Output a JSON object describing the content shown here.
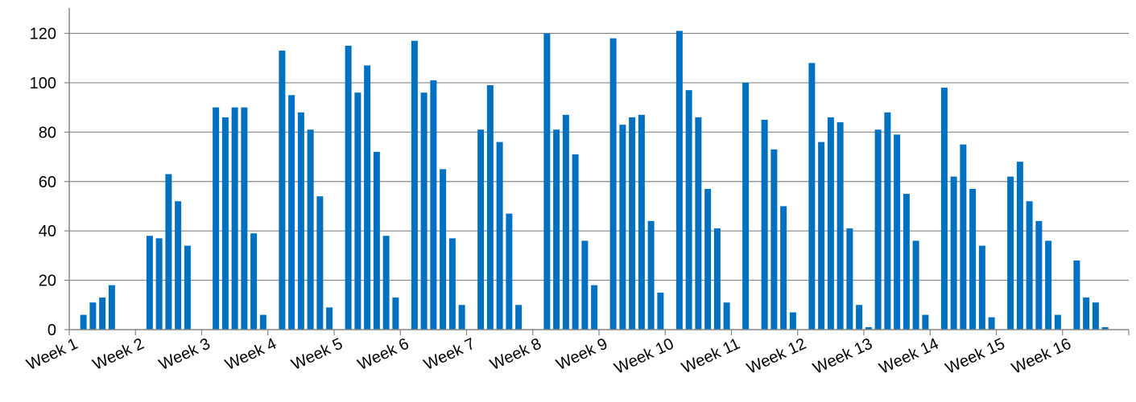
{
  "chart_data": {
    "type": "bar",
    "title": "",
    "xlabel": "",
    "ylabel": "",
    "ylim": [
      0,
      120
    ],
    "yticks": [
      0,
      20,
      40,
      60,
      80,
      100,
      120
    ],
    "grid": true,
    "legend": "none",
    "bar_color": "#0070C0",
    "categories": [
      "Week 1",
      "Week 2",
      "Week 3",
      "Week 4",
      "Week 5",
      "Week 6",
      "Week 7",
      "Week 8",
      "Week 9",
      "Week 10",
      "Week 11",
      "Week 12",
      "Week 13",
      "Week 14",
      "Week 15",
      "Week 16"
    ],
    "values": [
      [
        0,
        6,
        11,
        13,
        18,
        0,
        0
      ],
      [
        0,
        38,
        37,
        63,
        52,
        34,
        0
      ],
      [
        0,
        90,
        86,
        90,
        90,
        39,
        6
      ],
      [
        0,
        113,
        95,
        88,
        81,
        54,
        9
      ],
      [
        0,
        115,
        96,
        107,
        72,
        38,
        13
      ],
      [
        0,
        117,
        96,
        101,
        65,
        37,
        10
      ],
      [
        0,
        81,
        99,
        76,
        47,
        10,
        0
      ],
      [
        0,
        120,
        81,
        87,
        71,
        36,
        18
      ],
      [
        0,
        118,
        83,
        86,
        87,
        44,
        15
      ],
      [
        0,
        121,
        97,
        86,
        57,
        41,
        11
      ],
      [
        0,
        100,
        0,
        85,
        73,
        50,
        7
      ],
      [
        0,
        108,
        76,
        86,
        84,
        41,
        10
      ],
      [
        1,
        81,
        88,
        79,
        55,
        36,
        6
      ],
      [
        0,
        98,
        62,
        75,
        57,
        34,
        5
      ],
      [
        0,
        62,
        68,
        52,
        44,
        36,
        6
      ],
      [
        0,
        28,
        13,
        11,
        1,
        0,
        0
      ]
    ]
  }
}
